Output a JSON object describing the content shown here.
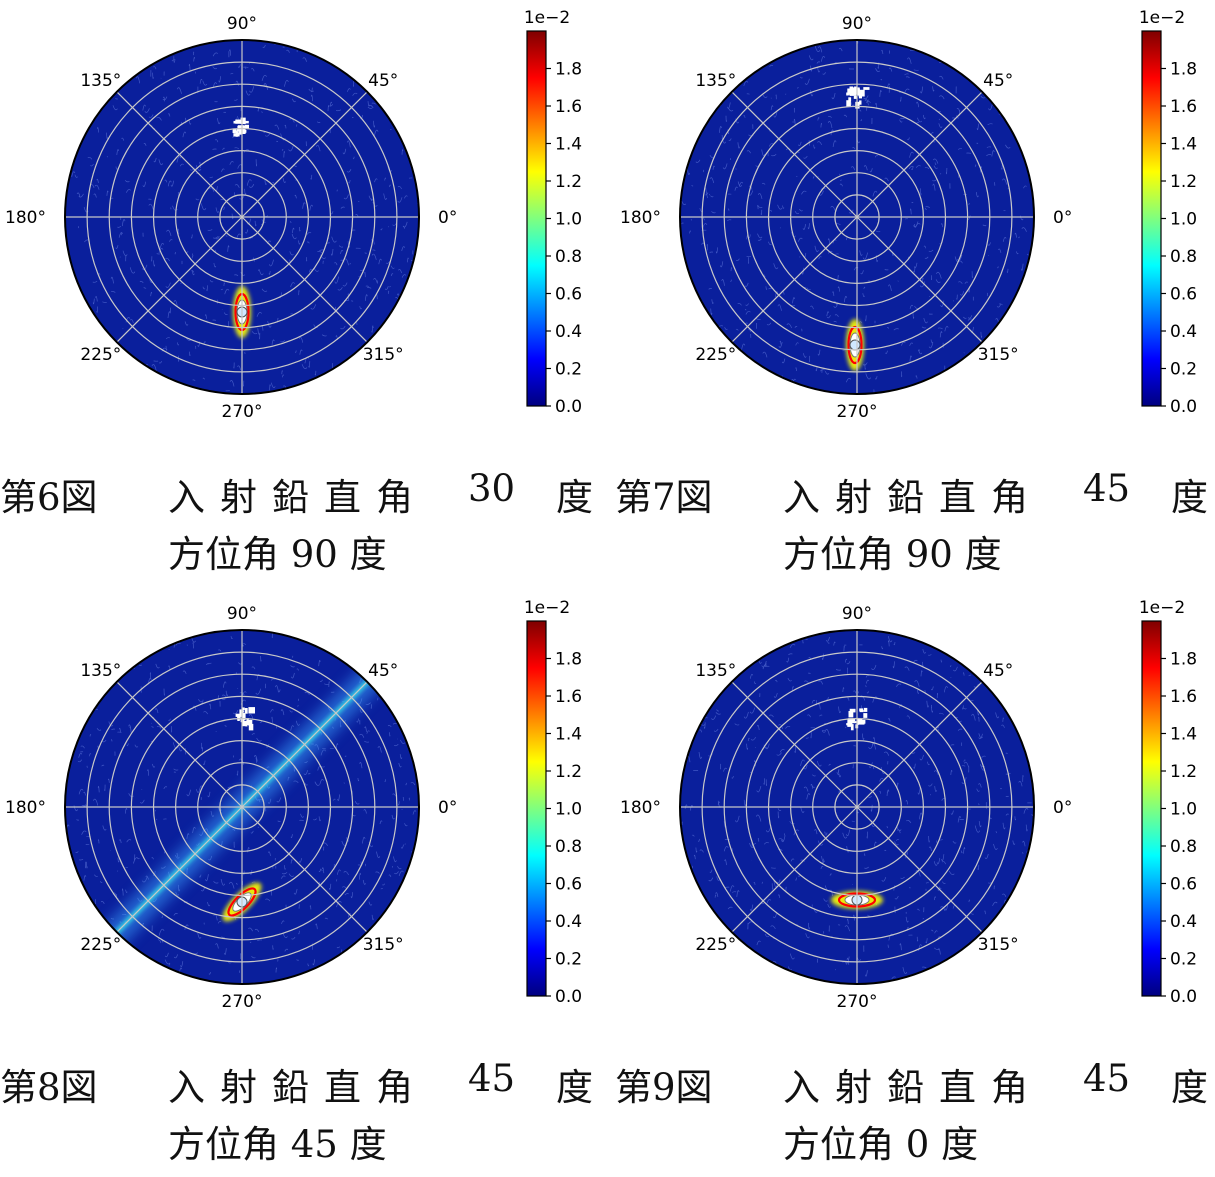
{
  "colorbar": {
    "colors": [
      "#00007f",
      "#0000ff",
      "#007fff",
      "#00ffff",
      "#7fff7f",
      "#ffff00",
      "#ff7f00",
      "#ff0000",
      "#7f0000"
    ],
    "background": "#0a1f9c",
    "grid_color": "#c8c8c8"
  },
  "chart_data": [
    {
      "type": "heatmap",
      "projection": "polar",
      "angular_ticks": [
        "0°",
        "45°",
        "90°",
        "135°",
        "180°",
        "225°",
        "270°",
        "315°"
      ],
      "radial_rings": 8,
      "colorbar_ticks": [
        "0.0",
        "0.2",
        "0.4",
        "0.6",
        "0.8",
        "1.0",
        "1.2",
        "1.4",
        "1.6",
        "1.8"
      ],
      "colorbar_multiplier": "1e−2",
      "vmin": 0.0,
      "vmax": 0.02,
      "streak_direction_deg": 90,
      "caption": {
        "fig": "第6図",
        "words": [
          "入",
          "射",
          "鉛",
          "直",
          "角"
        ],
        "angle": "30",
        "unit": "度",
        "line2": "方位角 90 度"
      }
    },
    {
      "type": "heatmap",
      "projection": "polar",
      "angular_ticks": [
        "0°",
        "45°",
        "90°",
        "135°",
        "180°",
        "225°",
        "270°",
        "315°"
      ],
      "radial_rings": 8,
      "colorbar_ticks": [
        "0.0",
        "0.2",
        "0.4",
        "0.6",
        "0.8",
        "1.0",
        "1.2",
        "1.4",
        "1.6",
        "1.8"
      ],
      "colorbar_multiplier": "1e−2",
      "vmin": 0.0,
      "vmax": 0.02,
      "streak_direction_deg": 90,
      "caption": {
        "fig": "第7図",
        "words": [
          "入",
          "射",
          "鉛",
          "直",
          "角"
        ],
        "angle": "45",
        "unit": "度",
        "line2": "方位角 90 度"
      }
    },
    {
      "type": "heatmap",
      "projection": "polar",
      "angular_ticks": [
        "0°",
        "45°",
        "90°",
        "135°",
        "180°",
        "225°",
        "270°",
        "315°"
      ],
      "radial_rings": 8,
      "colorbar_ticks": [
        "0.0",
        "0.2",
        "0.4",
        "0.6",
        "0.8",
        "1.0",
        "1.2",
        "1.4",
        "1.6",
        "1.8"
      ],
      "colorbar_multiplier": "1e−2",
      "vmin": 0.0,
      "vmax": 0.02,
      "streak_direction_deg": 45,
      "caption": {
        "fig": "第8図",
        "words": [
          "入",
          "射",
          "鉛",
          "直",
          "角"
        ],
        "angle": "45",
        "unit": "度",
        "line2": "方位角 45 度"
      }
    },
    {
      "type": "heatmap",
      "projection": "polar",
      "angular_ticks": [
        "0°",
        "45°",
        "90°",
        "135°",
        "180°",
        "225°",
        "270°",
        "315°"
      ],
      "radial_rings": 8,
      "colorbar_ticks": [
        "0.0",
        "0.2",
        "0.4",
        "0.6",
        "0.8",
        "1.0",
        "1.2",
        "1.4",
        "1.6",
        "1.8"
      ],
      "colorbar_multiplier": "1e−2",
      "vmin": 0.0,
      "vmax": 0.02,
      "streak_direction_deg": 0,
      "caption": {
        "fig": "第9図",
        "words": [
          "入",
          "射",
          "鉛",
          "直",
          "角"
        ],
        "angle": "45",
        "unit": "度",
        "line2": "方位角 0 度"
      }
    }
  ]
}
